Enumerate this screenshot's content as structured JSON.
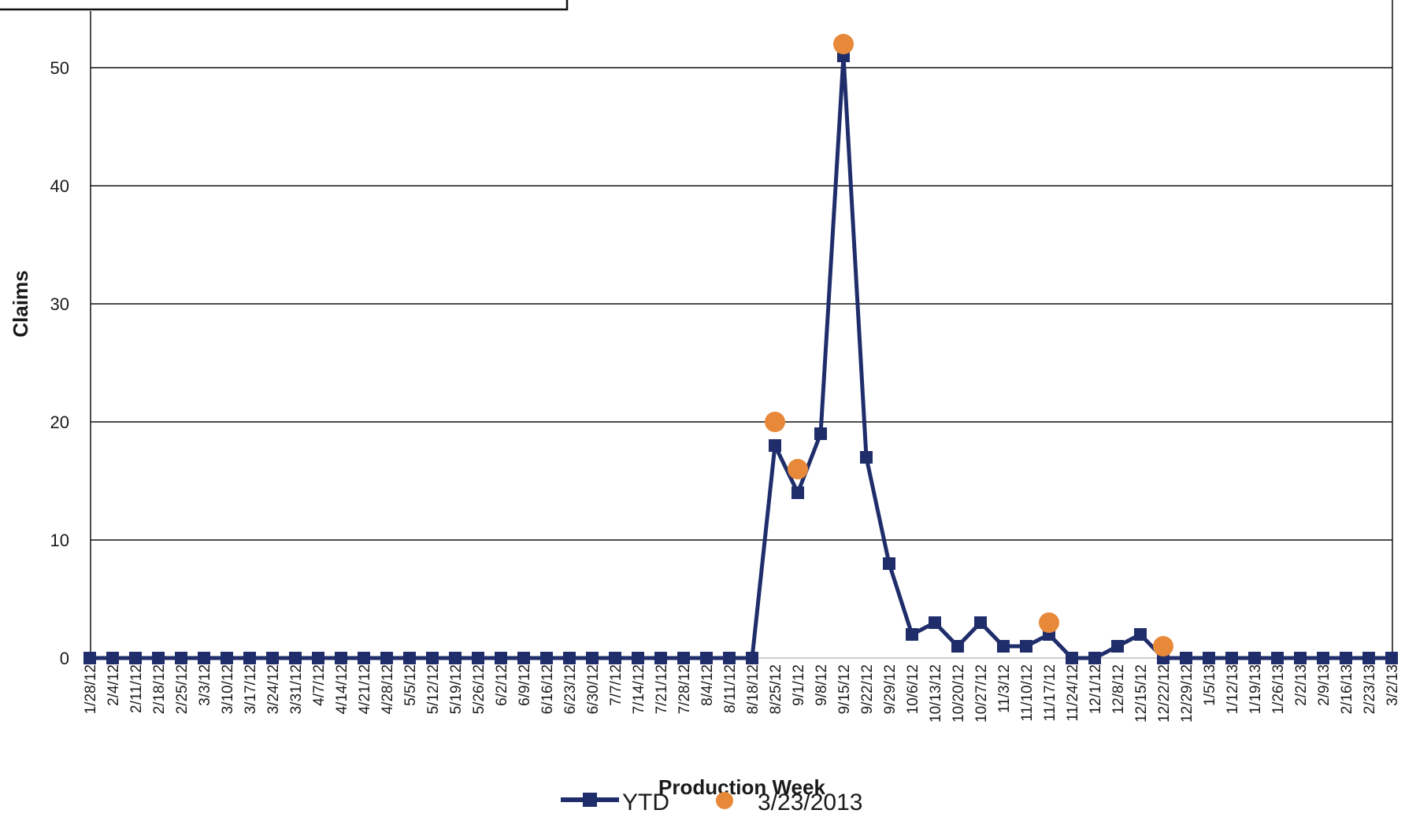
{
  "chart_data": {
    "type": "line",
    "title": "",
    "xlabel": "Production Week",
    "ylabel": "Claims",
    "ylim": [
      0,
      50
    ],
    "yticks": [
      0,
      10,
      20,
      30,
      40,
      50
    ],
    "grid": true,
    "legend_position": "bottom",
    "categories": [
      "1/28/12",
      "2/4/12",
      "2/11/12",
      "2/18/12",
      "2/25/12",
      "3/3/12",
      "3/10/12",
      "3/17/12",
      "3/24/12",
      "3/31/12",
      "4/7/12",
      "4/14/12",
      "4/21/12",
      "4/28/12",
      "5/5/12",
      "5/12/12",
      "5/19/12",
      "5/26/12",
      "6/2/12",
      "6/9/12",
      "6/16/12",
      "6/23/12",
      "6/30/12",
      "7/7/12",
      "7/14/12",
      "7/21/12",
      "7/28/12",
      "8/4/12",
      "8/11/12",
      "8/18/12",
      "8/25/12",
      "9/1/12",
      "9/8/12",
      "9/15/12",
      "9/22/12",
      "9/29/12",
      "10/6/12",
      "10/13/12",
      "10/20/12",
      "10/27/12",
      "11/3/12",
      "11/10/12",
      "11/17/12",
      "11/24/12",
      "12/1/12",
      "12/8/12",
      "12/15/12",
      "12/22/12",
      "12/29/12",
      "1/5/13",
      "1/12/13",
      "1/19/13",
      "1/26/13",
      "2/2/13",
      "2/9/13",
      "2/16/13",
      "2/23/13",
      "3/2/13"
    ],
    "series": [
      {
        "name": "YTD",
        "color": "#1f2d6b",
        "marker": "square",
        "values": [
          0,
          0,
          0,
          0,
          0,
          0,
          0,
          0,
          0,
          0,
          0,
          0,
          0,
          0,
          0,
          0,
          0,
          0,
          0,
          0,
          0,
          0,
          0,
          0,
          0,
          0,
          0,
          0,
          0,
          0,
          18,
          14,
          19,
          51,
          17,
          8,
          2,
          3,
          1,
          3,
          1,
          1,
          2,
          0,
          0,
          1,
          2,
          0,
          0,
          0,
          0,
          0,
          0,
          0,
          0,
          0,
          0,
          0
        ]
      },
      {
        "name": "3/23/2013",
        "color": "#e8893a",
        "marker": "circle",
        "points": [
          {
            "x": "8/25/12",
            "y": 20
          },
          {
            "x": "9/1/12",
            "y": 16
          },
          {
            "x": "9/15/12",
            "y": 52
          },
          {
            "x": "11/17/12",
            "y": 3
          },
          {
            "x": "12/22/12",
            "y": 1
          }
        ]
      }
    ]
  }
}
